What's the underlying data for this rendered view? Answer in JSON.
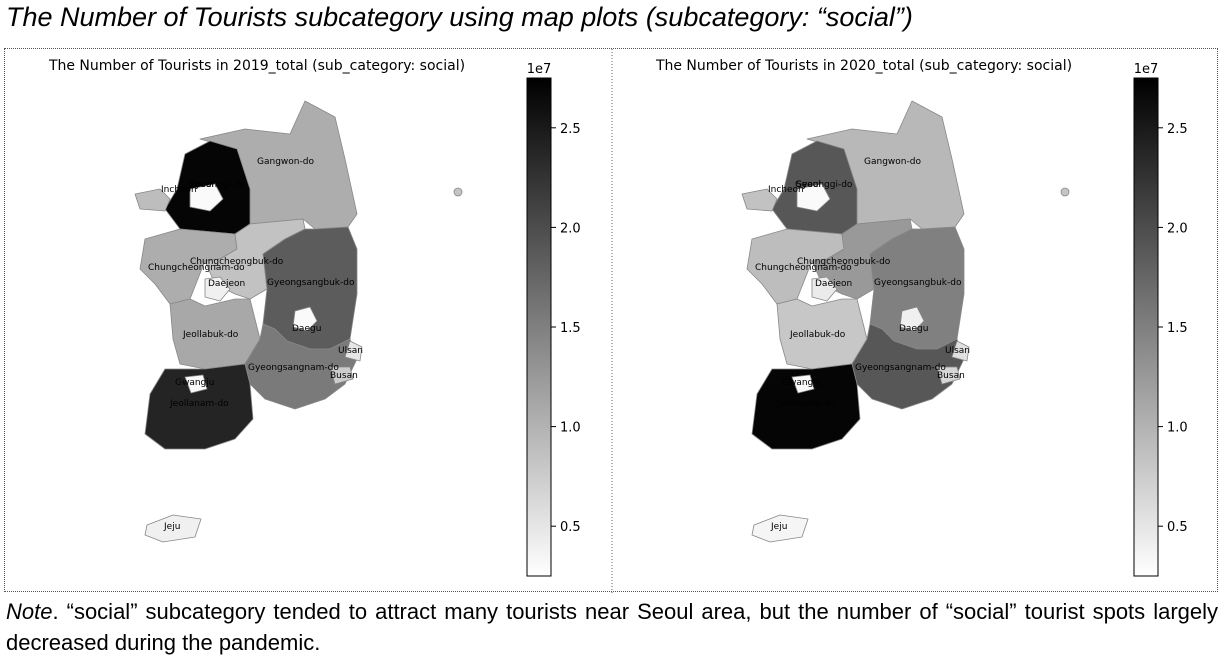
{
  "figure": {
    "title": "The Number of Tourists subcategory using map plots (subcategory: “social”)",
    "note_lead": "Note",
    "note_rest": ". “social” subcategory tended to attract many tourists near Seoul area, but the number of “social” tourist spots largely decreased during the pandemic."
  },
  "colormap": {
    "name": "Greys",
    "low_color": "#ffffff",
    "high_color": "#000000",
    "vmin": 2500000,
    "vmax": 27500000,
    "multiplier_label": "1e7",
    "ticks": [
      {
        "value": 5000000,
        "label": "0.5"
      },
      {
        "value": 10000000,
        "label": "1.0"
      },
      {
        "value": 15000000,
        "label": "1.5"
      },
      {
        "value": 20000000,
        "label": "2.0"
      },
      {
        "value": 25000000,
        "label": "2.5"
      }
    ]
  },
  "panels": [
    {
      "title": "The Number of Tourists in 2019_total (sub_category: social)",
      "values": {
        "Gangwon-do": 10500000,
        "Gyeonggi-do": 27000000,
        "Seoul": 3000000,
        "Incheon": 9000000,
        "Chungcheongnam-do": 10500000,
        "Chungcheongbuk-do": 8500000,
        "Daejeon": 4000000,
        "Gyeongsangbuk-do": 18500000,
        "Daegu": 3000000,
        "Jeollabuk-do": 11000000,
        "Gyeongsangnam-do": 15500000,
        "Ulsan": 5000000,
        "Busan": 7500000,
        "Gwangju": 3000000,
        "Jeollanam-do": 24000000,
        "Jeju": 4000000
      }
    },
    {
      "title": "The Number of Tourists in 2020_total (sub_category: social)",
      "values": {
        "Gangwon-do": 9500000,
        "Gyeonggi-do": 19000000,
        "Seoul": 3000000,
        "Incheon": 8500000,
        "Chungcheongnam-do": 9000000,
        "Chungcheongbuk-do": 12500000,
        "Daejeon": 4500000,
        "Gyeongsangbuk-do": 15000000,
        "Daegu": 4000000,
        "Jeollabuk-do": 8000000,
        "Gyeongsangnam-do": 19000000,
        "Ulsan": 5500000,
        "Busan": 6500000,
        "Gwangju": 3000000,
        "Jeollanam-do": 27000000,
        "Jeju": 3500000
      }
    }
  ]
}
